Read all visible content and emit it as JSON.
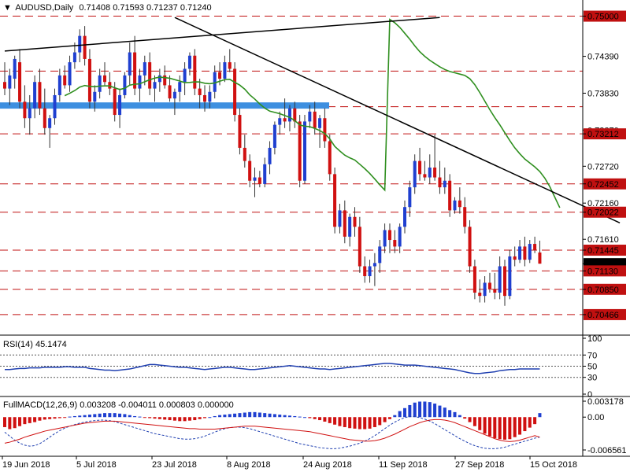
{
  "header": {
    "symbol": "AUDUSD,Daily",
    "ohlc": "0.71408 0.71593 0.71237 0.71240"
  },
  "rsi_panel": {
    "title": "RSI(14) 45.1474",
    "axis_labels": [
      "100",
      "70",
      "50",
      "30",
      "0"
    ]
  },
  "macd_panel": {
    "title": "FullMACD(12,26,9) 0.003208 -0.004011 0.000803 0.000000",
    "axis_labels": [
      "0.003178",
      "0.00",
      "-0.006561"
    ]
  },
  "date_labels": [
    "19 Jun 2018",
    "5 Jul 2018",
    "23 Jul 2018",
    "8 Aug 2018",
    "24 Aug 2018",
    "11 Sep 2018",
    "27 Sep 2018",
    "15 Oct 2018"
  ],
  "colors": {
    "bull": "#1f3fd0",
    "bear": "#d01010",
    "ma": "#2f8f1f",
    "zone": "#3d8fe0",
    "hline": "#c01010",
    "rsi": "#1f3fb0",
    "macd_signal": "#d01010",
    "macd_main": "#1f3fb0"
  },
  "chart_data": [
    {
      "type": "candlestick",
      "symbol": "AUDUSD",
      "timeframe": "Daily",
      "ylim": [
        0.7025,
        0.7515
      ],
      "price_labels": [
        "0.75000",
        "0.74390",
        "0.73830",
        "0.73270",
        "0.73212",
        "0.72720",
        "0.72452",
        "0.72160",
        "0.72022",
        "0.71610",
        "0.71445",
        "0.71240",
        "0.71130",
        "0.70850",
        "0.70466"
      ],
      "support_resistance_levels": [
        0.75,
        0.74166,
        0.73624,
        0.73212,
        0.72452,
        0.72022,
        0.71445,
        0.7113,
        0.7085,
        0.70466
      ],
      "supply_zone": [
        0.73595,
        0.7369
      ],
      "trendline_upper": [
        [
          0,
          0.7447
        ],
        [
          87,
          0.7498
        ]
      ],
      "trendline_down": [
        [
          34,
          0.7498
        ],
        [
          123,
          0.7186
        ]
      ],
      "ohlc": [
        [
          0.74,
          0.743,
          0.738,
          0.739
        ],
        [
          0.739,
          0.742,
          0.7365,
          0.741
        ],
        [
          0.7405,
          0.744,
          0.739,
          0.7435
        ],
        [
          0.743,
          0.745,
          0.736,
          0.737
        ],
        [
          0.737,
          0.7395,
          0.733,
          0.7345
        ],
        [
          0.7345,
          0.738,
          0.732,
          0.736
        ],
        [
          0.736,
          0.741,
          0.7345,
          0.74
        ],
        [
          0.74,
          0.742,
          0.735,
          0.736
        ],
        [
          0.736,
          0.739,
          0.732,
          0.733
        ],
        [
          0.733,
          0.735,
          0.73,
          0.7345
        ],
        [
          0.7345,
          0.739,
          0.7335,
          0.738
        ],
        [
          0.738,
          0.742,
          0.737,
          0.741
        ],
        [
          0.741,
          0.7425,
          0.739,
          0.7395
        ],
        [
          0.7395,
          0.744,
          0.7385,
          0.743
        ],
        [
          0.743,
          0.746,
          0.742,
          0.7445
        ],
        [
          0.7445,
          0.748,
          0.743,
          0.747
        ],
        [
          0.747,
          0.7485,
          0.7425,
          0.7435
        ],
        [
          0.7435,
          0.745,
          0.736,
          0.737
        ],
        [
          0.737,
          0.7395,
          0.7355,
          0.7385
        ],
        [
          0.7385,
          0.742,
          0.7375,
          0.741
        ],
        [
          0.741,
          0.743,
          0.7395,
          0.74
        ],
        [
          0.74,
          0.7415,
          0.738,
          0.739
        ],
        [
          0.739,
          0.74,
          0.734,
          0.735
        ],
        [
          0.735,
          0.739,
          0.733,
          0.738
        ],
        [
          0.738,
          0.7415,
          0.7375,
          0.741
        ],
        [
          0.741,
          0.746,
          0.7395,
          0.7445
        ],
        [
          0.7445,
          0.747,
          0.738,
          0.739
        ],
        [
          0.739,
          0.742,
          0.737,
          0.741
        ],
        [
          0.741,
          0.744,
          0.7395,
          0.743
        ],
        [
          0.743,
          0.7445,
          0.738,
          0.739
        ],
        [
          0.739,
          0.741,
          0.737,
          0.74
        ],
        [
          0.74,
          0.742,
          0.7385,
          0.741
        ],
        [
          0.741,
          0.7425,
          0.739,
          0.7395
        ],
        [
          0.7395,
          0.741,
          0.737,
          0.7375
        ],
        [
          0.7375,
          0.739,
          0.735,
          0.7385
        ],
        [
          0.7385,
          0.741,
          0.737,
          0.74
        ],
        [
          0.74,
          0.743,
          0.738,
          0.742
        ],
        [
          0.742,
          0.7445,
          0.741,
          0.744
        ],
        [
          0.744,
          0.745,
          0.738,
          0.739
        ],
        [
          0.739,
          0.7405,
          0.736,
          0.738
        ],
        [
          0.738,
          0.7395,
          0.7355,
          0.737
        ],
        [
          0.737,
          0.7395,
          0.736,
          0.7385
        ],
        [
          0.7385,
          0.7425,
          0.7375,
          0.7415
        ],
        [
          0.7415,
          0.743,
          0.7395,
          0.7405
        ],
        [
          0.7405,
          0.744,
          0.74,
          0.743
        ],
        [
          0.743,
          0.745,
          0.7415,
          0.742
        ],
        [
          0.742,
          0.743,
          0.734,
          0.735
        ],
        [
          0.735,
          0.736,
          0.729,
          0.73
        ],
        [
          0.73,
          0.732,
          0.727,
          0.728
        ],
        [
          0.728,
          0.729,
          0.724,
          0.725
        ],
        [
          0.725,
          0.727,
          0.7225,
          0.7255
        ],
        [
          0.7255,
          0.7265,
          0.724,
          0.7245
        ],
        [
          0.7245,
          0.7285,
          0.724,
          0.7275
        ],
        [
          0.7275,
          0.731,
          0.726,
          0.73
        ],
        [
          0.73,
          0.734,
          0.729,
          0.7335
        ],
        [
          0.7335,
          0.7355,
          0.732,
          0.7345
        ],
        [
          0.7345,
          0.7375,
          0.733,
          0.734
        ],
        [
          0.734,
          0.7365,
          0.7325,
          0.736
        ],
        [
          0.736,
          0.737,
          0.733,
          0.734
        ],
        [
          0.734,
          0.735,
          0.724,
          0.725
        ],
        [
          0.725,
          0.735,
          0.7245,
          0.734
        ],
        [
          0.734,
          0.7365,
          0.733,
          0.7355
        ],
        [
          0.7355,
          0.737,
          0.732,
          0.733
        ],
        [
          0.733,
          0.735,
          0.73,
          0.7345
        ],
        [
          0.7345,
          0.736,
          0.73,
          0.731
        ],
        [
          0.731,
          0.732,
          0.725,
          0.726
        ],
        [
          0.726,
          0.727,
          0.717,
          0.718
        ],
        [
          0.718,
          0.7215,
          0.717,
          0.7205
        ],
        [
          0.7205,
          0.722,
          0.7155,
          0.7165
        ],
        [
          0.7165,
          0.72,
          0.715,
          0.7195
        ],
        [
          0.7195,
          0.721,
          0.7165,
          0.718
        ],
        [
          0.718,
          0.7195,
          0.711,
          0.712
        ],
        [
          0.712,
          0.7135,
          0.7095,
          0.7105
        ],
        [
          0.7105,
          0.713,
          0.7095,
          0.712
        ],
        [
          0.712,
          0.714,
          0.709,
          0.7125
        ],
        [
          0.7125,
          0.716,
          0.711,
          0.715
        ],
        [
          0.715,
          0.7185,
          0.714,
          0.7175
        ],
        [
          0.7175,
          0.7185,
          0.714,
          0.716
        ],
        [
          0.716,
          0.7175,
          0.714,
          0.715
        ],
        [
          0.715,
          0.7185,
          0.714,
          0.718
        ],
        [
          0.718,
          0.722,
          0.717,
          0.721
        ],
        [
          0.721,
          0.725,
          0.7195,
          0.724
        ],
        [
          0.724,
          0.729,
          0.723,
          0.728
        ],
        [
          0.728,
          0.73,
          0.725,
          0.726
        ],
        [
          0.726,
          0.728,
          0.725,
          0.7255
        ],
        [
          0.7255,
          0.729,
          0.7245,
          0.727
        ],
        [
          0.727,
          0.732,
          0.725,
          0.7255
        ],
        [
          0.7255,
          0.728,
          0.723,
          0.724
        ],
        [
          0.724,
          0.727,
          0.723,
          0.725
        ],
        [
          0.725,
          0.726,
          0.7195,
          0.7205
        ],
        [
          0.7205,
          0.7225,
          0.72,
          0.722
        ],
        [
          0.722,
          0.724,
          0.72,
          0.721
        ],
        [
          0.721,
          0.7225,
          0.717,
          0.718
        ],
        [
          0.718,
          0.719,
          0.711,
          0.712
        ],
        [
          0.712,
          0.713,
          0.707,
          0.708
        ],
        [
          0.708,
          0.71,
          0.7065,
          0.7075
        ],
        [
          0.7075,
          0.7105,
          0.7065,
          0.7095
        ],
        [
          0.7095,
          0.711,
          0.708,
          0.7085
        ],
        [
          0.7085,
          0.711,
          0.707,
          0.708
        ],
        [
          0.708,
          0.7135,
          0.707,
          0.712
        ],
        [
          0.712,
          0.713,
          0.706,
          0.7075
        ],
        [
          0.7075,
          0.7145,
          0.707,
          0.7135
        ],
        [
          0.7135,
          0.715,
          0.712,
          0.713
        ],
        [
          0.713,
          0.716,
          0.7125,
          0.715
        ],
        [
          0.715,
          0.7165,
          0.712,
          0.713
        ],
        [
          0.713,
          0.716,
          0.7125,
          0.7154
        ],
        [
          0.7154,
          0.7165,
          0.714,
          0.7144
        ],
        [
          0.7141,
          0.7159,
          0.7124,
          0.7124
        ]
      ],
      "moving_average": [
        0.7495,
        0.749,
        0.7483,
        0.7474,
        0.7465,
        0.7455,
        0.7446,
        0.7439,
        0.7433,
        0.7428,
        0.7423,
        0.7419,
        0.7416,
        0.7414,
        0.7412,
        0.741,
        0.7405,
        0.7396,
        0.7384,
        0.7371,
        0.7358,
        0.7346,
        0.7335,
        0.7323,
        0.7311,
        0.73,
        0.7291,
        0.7283,
        0.7277,
        0.7271,
        0.7264,
        0.7254,
        0.7241,
        0.7225,
        0.7209
      ],
      "moving_average_start_index": 77
    },
    {
      "type": "line",
      "name": "RSI(14)",
      "ylim": [
        0,
        100
      ],
      "reference_levels": [
        70,
        50,
        30
      ],
      "values": [
        44,
        44,
        45,
        46,
        46,
        47,
        47,
        47,
        48,
        48,
        48,
        48,
        49,
        49,
        48,
        48,
        48,
        46,
        45,
        44,
        43,
        43,
        42,
        43,
        44,
        45,
        47,
        49,
        51,
        53,
        53,
        52,
        51,
        50,
        49,
        48,
        48,
        47,
        46,
        45,
        44,
        45,
        46,
        47,
        48,
        48,
        47,
        46,
        45,
        44,
        44,
        45,
        46,
        47,
        48,
        49,
        50,
        51,
        50,
        49,
        48,
        47,
        46,
        45,
        45,
        44,
        45,
        46,
        47,
        48,
        49,
        50,
        51,
        52,
        53,
        54,
        55,
        55,
        54,
        53,
        52,
        52,
        52,
        51,
        50,
        49,
        48,
        47,
        46,
        45,
        44,
        42,
        40,
        38,
        37,
        37,
        38,
        39,
        40,
        42,
        43,
        44,
        44,
        45,
        45,
        45,
        45,
        45
      ]
    },
    {
      "type": "bar",
      "name": "FullMACD(12,26,9)",
      "ylim": [
        -0.006561,
        0.003178
      ],
      "histogram": [
        -0.002,
        -0.0024,
        -0.0022,
        -0.0018,
        -0.0014,
        -0.0012,
        -0.001,
        -0.0007,
        -0.0005,
        -0.0004,
        -0.0003,
        -0.0002,
        -0.0001,
        0.0001,
        0.0002,
        0.0003,
        0.0004,
        0.0005,
        0.0006,
        0.0007,
        0.0008,
        0.0008,
        0.0008,
        0.0007,
        0.0006,
        0.0004,
        0.0002,
        0.0001,
        -0.0001,
        -0.0002,
        -0.0003,
        -0.0004,
        -0.0005,
        -0.0006,
        -0.0007,
        -0.0008,
        -0.0008,
        -0.0007,
        -0.0006,
        -0.0004,
        -0.0002,
        0.0,
        0.0002,
        0.0004,
        0.0005,
        0.0006,
        0.0007,
        0.0008,
        0.0009,
        0.001,
        0.001,
        0.0009,
        0.0008,
        0.0007,
        0.0006,
        0.0005,
        0.0004,
        0.0003,
        0.0002,
        0.0001,
        0.0,
        -0.0002,
        -0.0004,
        -0.0006,
        -0.0009,
        -0.0012,
        -0.0015,
        -0.0018,
        -0.002,
        -0.0022,
        -0.0023,
        -0.0024,
        -0.0024,
        -0.0023,
        -0.002,
        -0.0016,
        -0.001,
        -0.0004,
        0.0004,
        0.0012,
        0.0018,
        0.0024,
        0.0029,
        0.0031,
        0.0031,
        0.003,
        0.0027,
        0.0023,
        0.0019,
        0.0014,
        0.001,
        0.0004,
        -0.0003,
        -0.001,
        -0.0018,
        -0.0026,
        -0.0033,
        -0.0038,
        -0.0042,
        -0.0044,
        -0.0045,
        -0.0044,
        -0.004,
        -0.0035,
        -0.0028,
        -0.0021,
        -0.0014,
        0.0008
      ],
      "signal": [
        -0.0052,
        -0.005,
        -0.0047,
        -0.0044,
        -0.004,
        -0.0037,
        -0.0034,
        -0.0031,
        -0.0028,
        -0.0026,
        -0.0024,
        -0.0022,
        -0.002,
        -0.0018,
        -0.0016,
        -0.0014,
        -0.0012,
        -0.0011,
        -0.001,
        -0.0009,
        -0.0008,
        -0.0008,
        -0.0008,
        -0.0009,
        -0.001,
        -0.0011,
        -0.0012,
        -0.0013,
        -0.0014,
        -0.0015,
        -0.0016,
        -0.0017,
        -0.0018,
        -0.0019,
        -0.002,
        -0.0021,
        -0.0022,
        -0.0023,
        -0.0023,
        -0.0024,
        -0.0024,
        -0.0024,
        -0.0024,
        -0.0023,
        -0.0022,
        -0.0021,
        -0.002,
        -0.0019,
        -0.0018,
        -0.0018,
        -0.0018,
        -0.0019,
        -0.002,
        -0.0021,
        -0.0022,
        -0.0023,
        -0.0024,
        -0.0025,
        -0.0026,
        -0.0027,
        -0.0028,
        -0.0029,
        -0.0031,
        -0.0033,
        -0.0035,
        -0.0037,
        -0.0039,
        -0.0041,
        -0.0043,
        -0.0045,
        -0.0046,
        -0.0047,
        -0.0048,
        -0.0048,
        -0.0047,
        -0.0045,
        -0.0042,
        -0.0038,
        -0.0034,
        -0.0029,
        -0.0024,
        -0.0019,
        -0.0015,
        -0.0011,
        -0.0008,
        -0.0006,
        -0.0005,
        -0.0005,
        -0.0006,
        -0.0008,
        -0.0011,
        -0.0015,
        -0.0019,
        -0.0023,
        -0.0027,
        -0.0031,
        -0.0035,
        -0.0039,
        -0.0043,
        -0.0046,
        -0.0048,
        -0.0049,
        -0.0048,
        -0.0046,
        -0.0043,
        -0.004,
        -0.0037,
        -0.004
      ],
      "main": [
        -0.003,
        -0.0038,
        -0.0046,
        -0.0052,
        -0.0056,
        -0.0058,
        -0.0057,
        -0.0053,
        -0.0047,
        -0.004,
        -0.0033,
        -0.0027,
        -0.0022,
        -0.0018,
        -0.0015,
        -0.0012,
        -0.001,
        -0.0008,
        -0.0007,
        -0.0006,
        -0.0006,
        -0.0007,
        -0.0009,
        -0.0012,
        -0.0015,
        -0.0018,
        -0.0021,
        -0.0024,
        -0.0027,
        -0.003,
        -0.0033,
        -0.0035,
        -0.0037,
        -0.0039,
        -0.0041,
        -0.0043,
        -0.0044,
        -0.0044,
        -0.0043,
        -0.0041,
        -0.0038,
        -0.0034,
        -0.003,
        -0.0026,
        -0.0023,
        -0.0021,
        -0.002,
        -0.002,
        -0.0021,
        -0.0023,
        -0.0026,
        -0.0029,
        -0.0032,
        -0.0035,
        -0.0038,
        -0.0041,
        -0.0044,
        -0.0047,
        -0.005,
        -0.0053,
        -0.0055,
        -0.0057,
        -0.0059,
        -0.0061,
        -0.0062,
        -0.0063,
        -0.0063,
        -0.0062,
        -0.006,
        -0.0058,
        -0.0055,
        -0.0052,
        -0.0048,
        -0.0043,
        -0.0037,
        -0.003,
        -0.0023,
        -0.0016,
        -0.001,
        -0.0005,
        -0.0001,
        0.0001,
        0.0001,
        -0.0001,
        -0.0004,
        -0.0008,
        -0.0013,
        -0.0019,
        -0.0025,
        -0.0031,
        -0.0037,
        -0.0043,
        -0.0048,
        -0.0053,
        -0.0057,
        -0.006,
        -0.0062,
        -0.0063,
        -0.0063,
        -0.0062,
        -0.006,
        -0.0057,
        -0.0054,
        -0.0051,
        -0.0048,
        -0.0045,
        -0.0042,
        -0.004
      ]
    }
  ]
}
